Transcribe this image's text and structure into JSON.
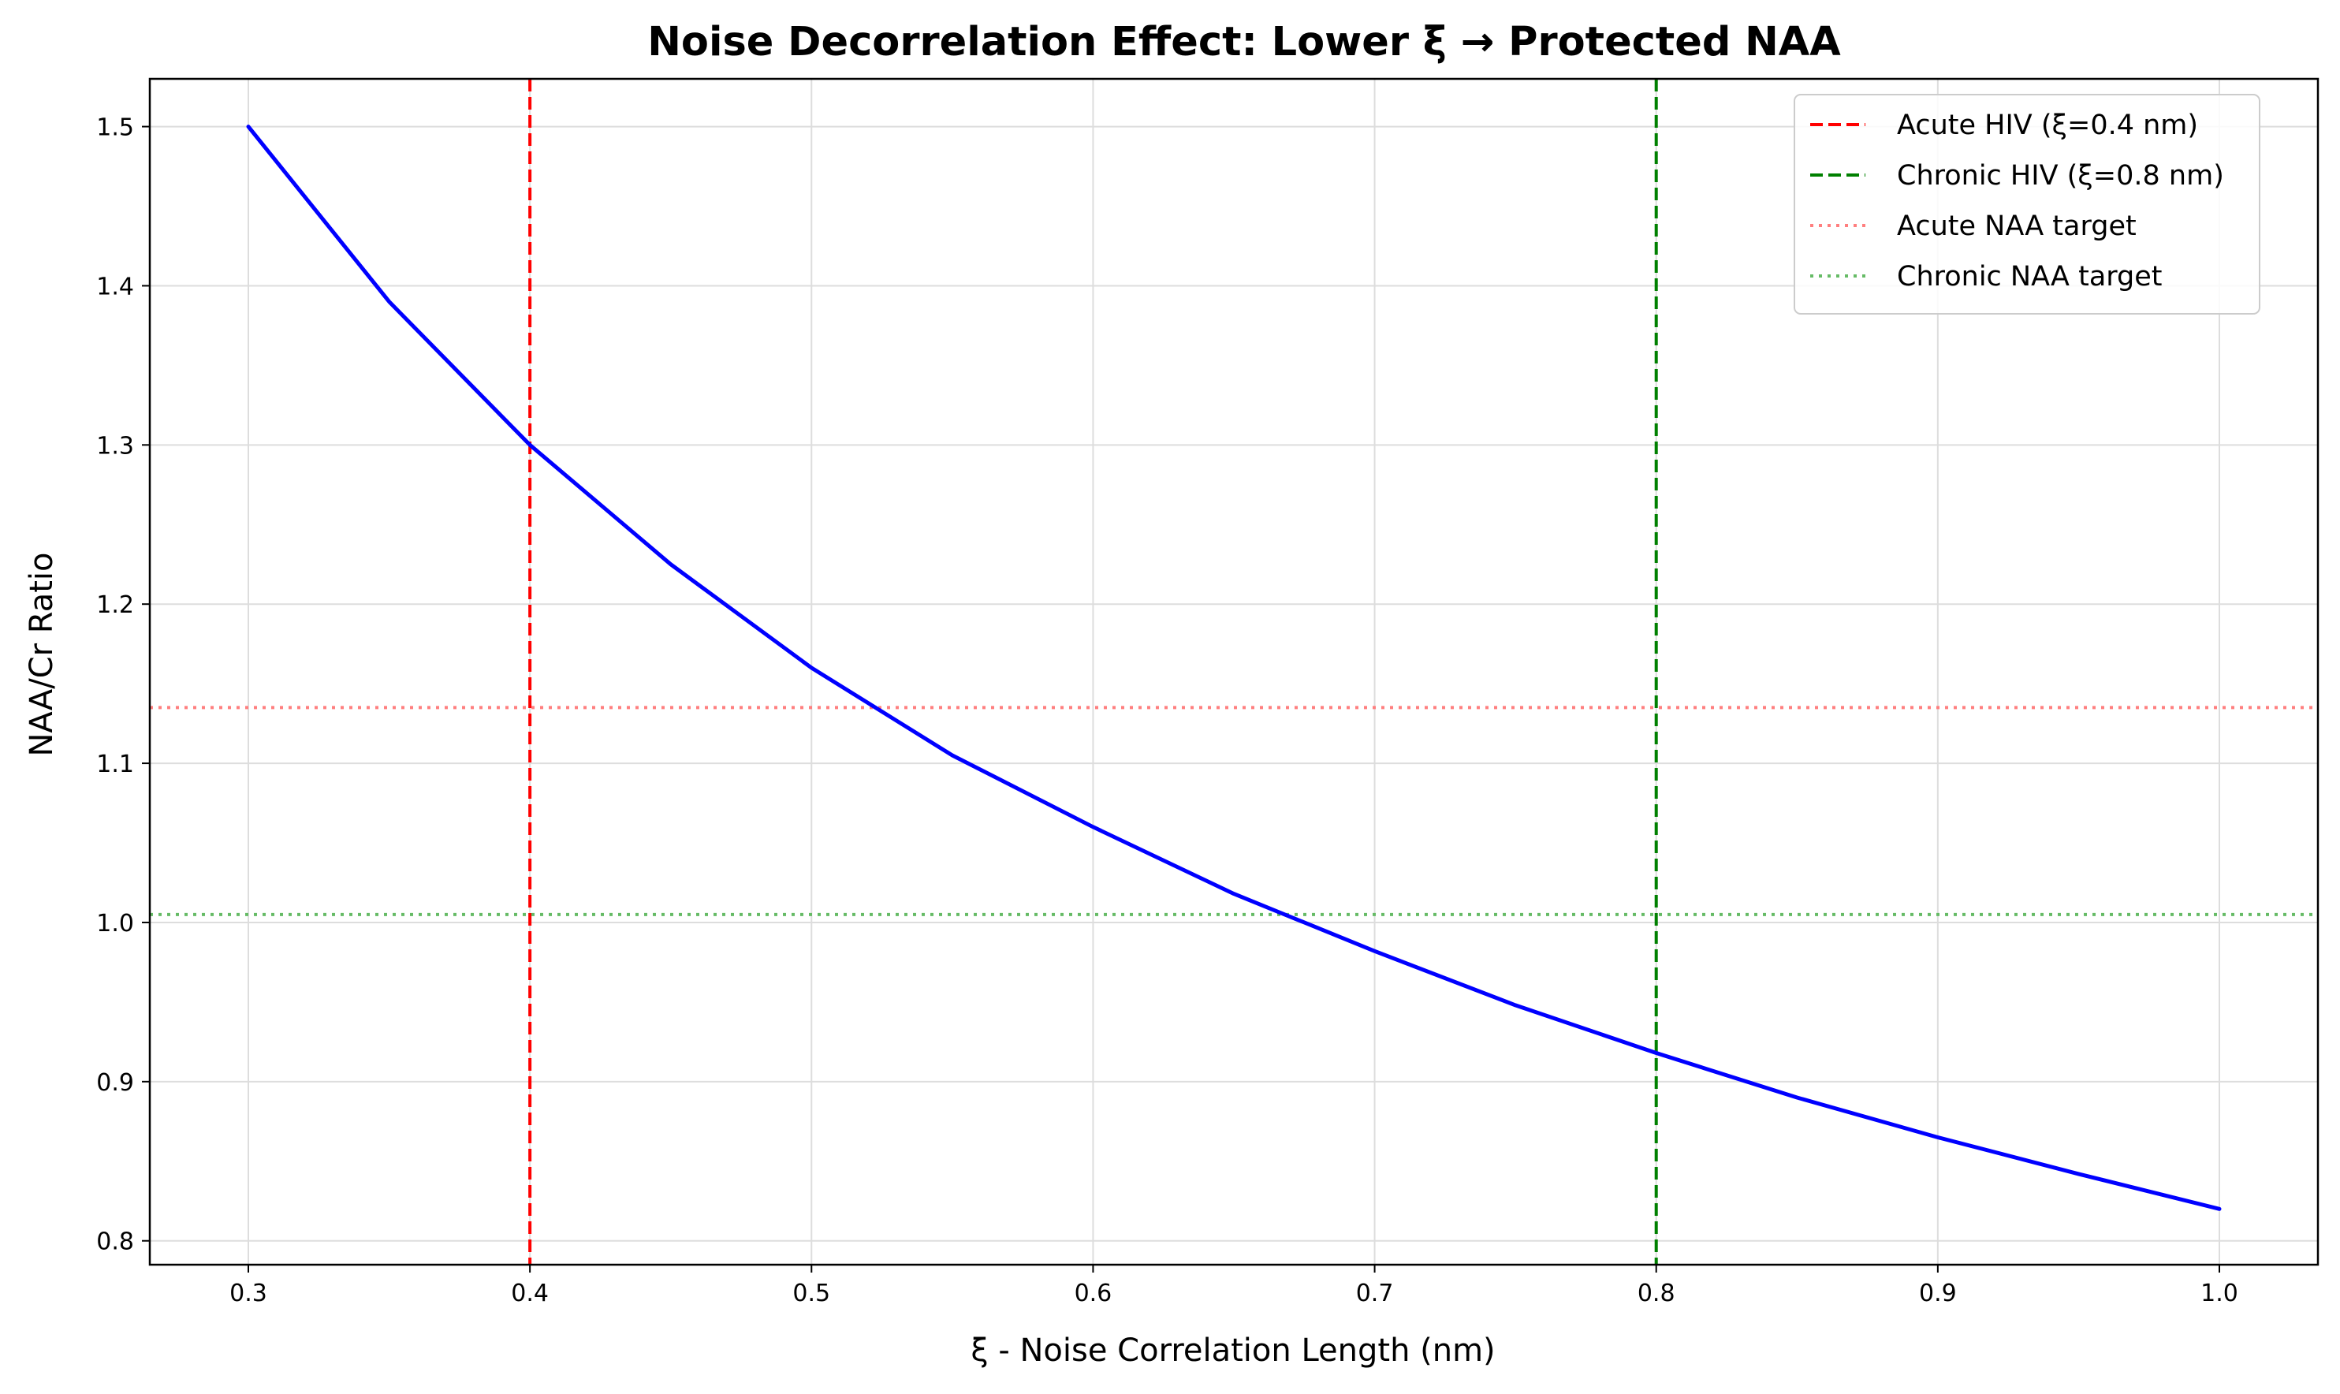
{
  "chart_data": {
    "type": "line",
    "title": "Noise Decorrelation Effect: Lower ξ → Protected NAA",
    "xlabel": "ξ - Noise Correlation Length (nm)",
    "ylabel": "NAA/Cr Ratio",
    "xlim": [
      0.265,
      1.035
    ],
    "ylim": [
      0.785,
      1.53
    ],
    "xticks": [
      "0.3",
      "0.4",
      "0.5",
      "0.6",
      "0.7",
      "0.8",
      "0.9",
      "1.0"
    ],
    "yticks": [
      "0.8",
      "0.9",
      "1.0",
      "1.1",
      "1.2",
      "1.3",
      "1.4",
      "1.5"
    ],
    "grid": true,
    "legend_position": "top-right",
    "series": [
      {
        "kind": "curve",
        "color": "#0000ff",
        "x": [
          0.3,
          0.35,
          0.4,
          0.45,
          0.5,
          0.55,
          0.6,
          0.65,
          0.7,
          0.75,
          0.8,
          0.85,
          0.9,
          0.95,
          1.0
        ],
        "y": [
          1.5,
          1.39,
          1.3,
          1.225,
          1.16,
          1.105,
          1.06,
          1.018,
          0.982,
          0.948,
          0.918,
          0.89,
          0.865,
          0.842,
          0.82
        ]
      },
      {
        "name": "Acute HIV (ξ=0.4 nm)",
        "kind": "vline",
        "x": 0.4,
        "color": "#ff0000",
        "style": "dashed"
      },
      {
        "name": "Chronic HIV (ξ=0.8 nm)",
        "kind": "vline",
        "x": 0.8,
        "color": "#008000",
        "style": "dashed"
      },
      {
        "name": "Acute NAA target",
        "kind": "hline",
        "y": 1.135,
        "color": "#ff7f7f",
        "style": "dotted"
      },
      {
        "name": "Chronic NAA target",
        "kind": "hline",
        "y": 1.005,
        "color": "#66bb66",
        "style": "dotted"
      }
    ]
  }
}
